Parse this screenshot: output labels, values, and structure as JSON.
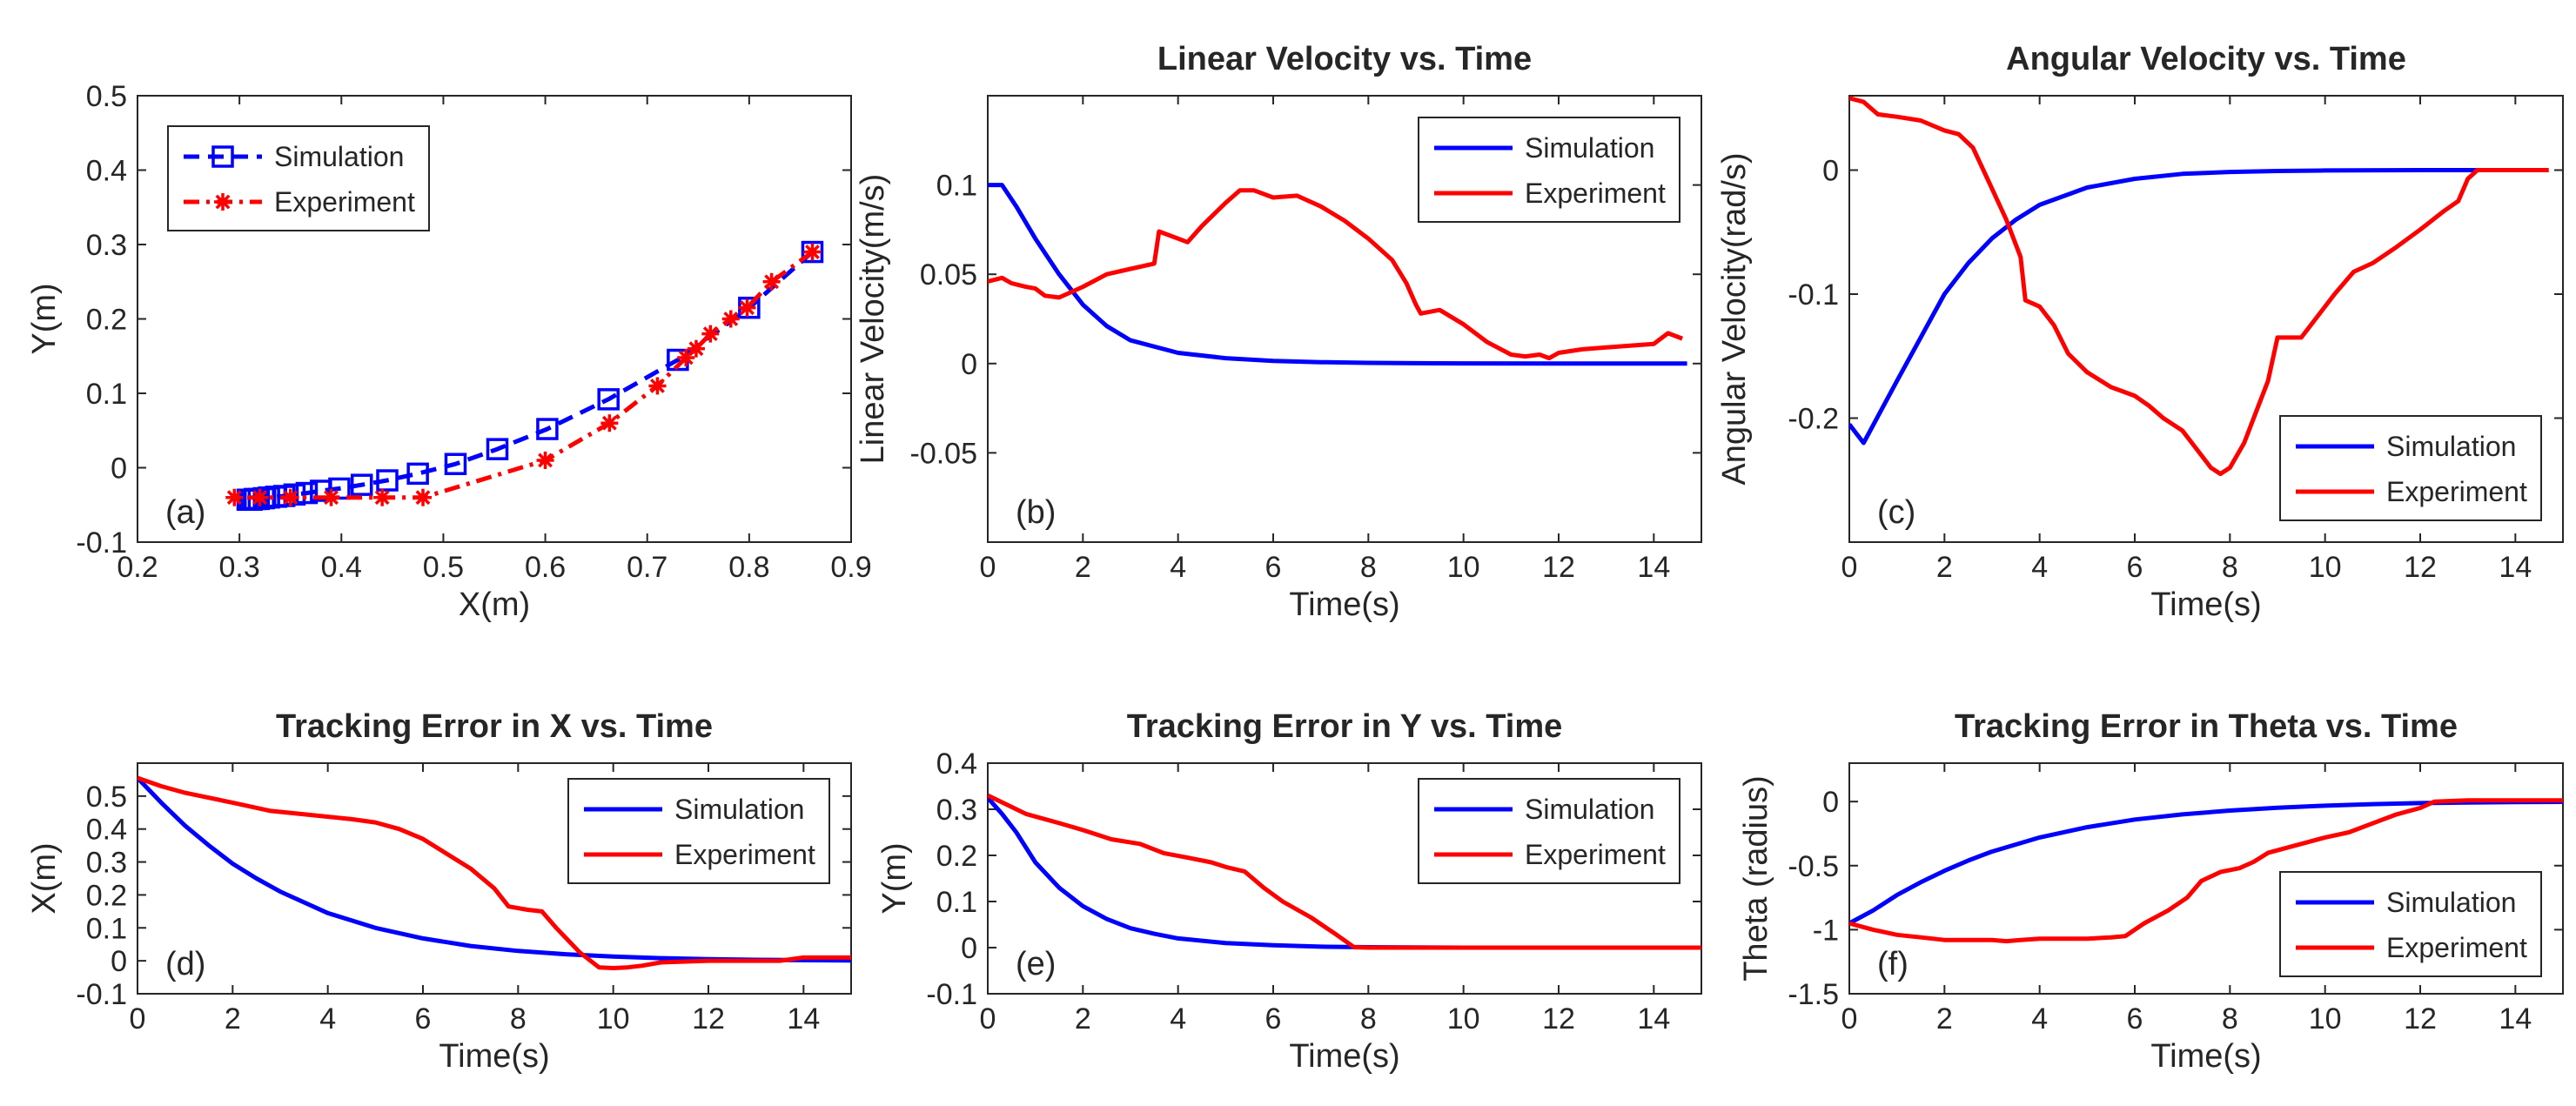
{
  "figure": {
    "description_labels": [
      "(a)",
      "(b)",
      "(c)",
      "(d)",
      "(e)",
      "(f)"
    ]
  },
  "colors": {
    "simulation": "#0000ff",
    "experiment": "#ff0000",
    "axis": "#262626"
  },
  "chart_data": [
    {
      "id": "a",
      "type": "line",
      "panel_label": "(a)",
      "title": "",
      "xlabel": "X(m)",
      "ylabel": "Y(m)",
      "xlim": [
        0.2,
        0.9
      ],
      "ylim": [
        -0.1,
        0.5
      ],
      "xticks": [
        0.2,
        0.3,
        0.4,
        0.5,
        0.6,
        0.7,
        0.8,
        0.9
      ],
      "xtick_labels": [
        "0.2",
        "0.3",
        "0.4",
        "0.5",
        "0.6",
        "0.7",
        "0.8",
        "0.9"
      ],
      "yticks": [
        -0.1,
        0,
        0.1,
        0.2,
        0.3,
        0.4,
        0.5
      ],
      "ytick_labels": [
        "-0.1",
        "0",
        "0.1",
        "0.2",
        "0.3",
        "0.4",
        "0.5"
      ],
      "legend_position": "top-left",
      "series": [
        {
          "name": "Simulation",
          "color": "#0000ff",
          "dash": "dashed",
          "marker": "square",
          "x": [
            0.862,
            0.8,
            0.73,
            0.662,
            0.602,
            0.553,
            0.512,
            0.475,
            0.445,
            0.42,
            0.398,
            0.38,
            0.366,
            0.354,
            0.344,
            0.336,
            0.329,
            0.324,
            0.319,
            0.315,
            0.312,
            0.31,
            0.308
          ],
          "y": [
            0.29,
            0.215,
            0.145,
            0.092,
            0.052,
            0.025,
            0.005,
            -0.008,
            -0.017,
            -0.023,
            -0.028,
            -0.031,
            -0.034,
            -0.036,
            -0.038,
            -0.039,
            -0.04,
            -0.041,
            -0.042,
            -0.042,
            -0.043,
            -0.043,
            -0.043
          ]
        },
        {
          "name": "Experiment",
          "color": "#ff0000",
          "dash": "dashdot",
          "marker": "star",
          "x": [
            0.862,
            0.822,
            0.798,
            0.782,
            0.762,
            0.748,
            0.738,
            0.71,
            0.663,
            0.6,
            0.48,
            0.44,
            0.39,
            0.35,
            0.32,
            0.295
          ],
          "y": [
            0.29,
            0.25,
            0.215,
            0.2,
            0.18,
            0.16,
            0.148,
            0.11,
            0.06,
            0.01,
            -0.04,
            -0.04,
            -0.04,
            -0.04,
            -0.04,
            -0.04
          ]
        }
      ]
    },
    {
      "id": "b",
      "type": "line",
      "panel_label": "(b)",
      "title": "Linear Velocity vs. Time",
      "xlabel": "Time(s)",
      "ylabel": "Linear Velocity(m/s)",
      "xlim": [
        0,
        15
      ],
      "ylim": [
        -0.1,
        0.15
      ],
      "xticks": [
        0,
        2,
        4,
        6,
        8,
        10,
        12,
        14
      ],
      "xtick_labels": [
        "0",
        "2",
        "4",
        "6",
        "8",
        "10",
        "12",
        "14"
      ],
      "yticks": [
        -0.05,
        0,
        0.05,
        0.1
      ],
      "ytick_labels": [
        "-0.05",
        "0",
        "0.05",
        "0.1"
      ],
      "legend_position": "top-right",
      "series": [
        {
          "name": "Simulation",
          "color": "#0000ff",
          "dash": "solid",
          "marker": "none",
          "x": [
            0,
            0.3,
            0.6,
            1.0,
            1.5,
            2,
            2.5,
            3,
            4,
            5,
            6,
            7,
            8,
            9,
            10,
            12,
            14,
            14.7
          ],
          "y": [
            0.1,
            0.1,
            0.088,
            0.07,
            0.05,
            0.033,
            0.021,
            0.013,
            0.006,
            0.003,
            0.0015,
            0.0008,
            0.0004,
            0.0002,
            0.0001,
            0,
            0,
            0
          ]
        },
        {
          "name": "Experiment",
          "color": "#ff0000",
          "dash": "solid",
          "marker": "none",
          "x": [
            0,
            0.3,
            0.5,
            0.8,
            1.0,
            1.2,
            1.5,
            2.0,
            2.5,
            3.0,
            3.5,
            3.6,
            4.0,
            4.2,
            4.5,
            5.0,
            5.3,
            5.6,
            6.0,
            6.5,
            7.0,
            7.5,
            8.0,
            8.5,
            8.8,
            9.0,
            9.1,
            9.5,
            10.0,
            10.5,
            11.0,
            11.3,
            11.6,
            11.8,
            12.0,
            12.5,
            13.0,
            13.5,
            14.0,
            14.3,
            14.6
          ],
          "y": [
            0.046,
            0.048,
            0.045,
            0.043,
            0.042,
            0.038,
            0.037,
            0.043,
            0.05,
            0.053,
            0.056,
            0.074,
            0.07,
            0.068,
            0.077,
            0.09,
            0.097,
            0.097,
            0.093,
            0.094,
            0.088,
            0.08,
            0.07,
            0.058,
            0.045,
            0.033,
            0.028,
            0.03,
            0.022,
            0.012,
            0.005,
            0.004,
            0.005,
            0.003,
            0.006,
            0.008,
            0.009,
            0.01,
            0.011,
            0.017,
            0.014
          ]
        }
      ]
    },
    {
      "id": "c",
      "type": "line",
      "panel_label": "(c)",
      "title": "Angular Velocity vs. Time",
      "xlabel": "Time(s)",
      "ylabel": "Angular Velocity(rad/s)",
      "xlim": [
        0,
        15
      ],
      "ylim": [
        -0.3,
        0.06
      ],
      "xticks": [
        0,
        2,
        4,
        6,
        8,
        10,
        12,
        14
      ],
      "xtick_labels": [
        "0",
        "2",
        "4",
        "6",
        "8",
        "10",
        "12",
        "14"
      ],
      "yticks": [
        -0.2,
        -0.1,
        0
      ],
      "ytick_labels": [
        "-0.2",
        "-0.1",
        "0"
      ],
      "legend_position": "bottom-right",
      "series": [
        {
          "name": "Simulation",
          "color": "#0000ff",
          "dash": "solid",
          "marker": "none",
          "x": [
            0,
            0.3,
            1.0,
            1.5,
            2,
            2.5,
            3,
            3.5,
            4,
            5,
            6,
            7,
            8,
            9,
            10,
            12,
            14,
            14.7
          ],
          "y": [
            -0.205,
            -0.22,
            -0.17,
            -0.135,
            -0.1,
            -0.075,
            -0.055,
            -0.04,
            -0.028,
            -0.014,
            -0.007,
            -0.003,
            -0.0015,
            -0.0007,
            -0.0003,
            0,
            0,
            0
          ]
        },
        {
          "name": "Experiment",
          "color": "#ff0000",
          "dash": "solid",
          "marker": "none",
          "x": [
            0,
            0.3,
            0.6,
            1.0,
            1.5,
            2.0,
            2.3,
            2.6,
            3.0,
            3.3,
            3.6,
            3.7,
            4.0,
            4.3,
            4.6,
            5.0,
            5.5,
            6.0,
            6.3,
            6.6,
            7.0,
            7.3,
            7.6,
            7.8,
            8.0,
            8.3,
            8.6,
            8.8,
            9.0,
            9.5,
            9.9,
            10.2,
            10.6,
            11.0,
            11.5,
            12.0,
            12.5,
            12.8,
            13.0,
            13.2,
            14.0,
            14.7
          ],
          "y": [
            0.058,
            0.055,
            0.045,
            0.043,
            0.04,
            0.032,
            0.029,
            0.018,
            -0.015,
            -0.04,
            -0.07,
            -0.105,
            -0.11,
            -0.125,
            -0.148,
            -0.163,
            -0.175,
            -0.182,
            -0.19,
            -0.2,
            -0.21,
            -0.225,
            -0.24,
            -0.245,
            -0.24,
            -0.22,
            -0.19,
            -0.17,
            -0.135,
            -0.135,
            -0.115,
            -0.1,
            -0.082,
            -0.075,
            -0.062,
            -0.048,
            -0.033,
            -0.025,
            -0.007,
            0,
            0,
            0
          ]
        }
      ]
    },
    {
      "id": "d",
      "type": "line",
      "panel_label": "(d)",
      "title": "Tracking Error in X vs. Time",
      "xlabel": "Time(s)",
      "ylabel": "X(m)",
      "xlim": [
        0,
        15
      ],
      "ylim": [
        -0.1,
        0.6
      ],
      "xticks": [
        0,
        2,
        4,
        6,
        8,
        10,
        12,
        14
      ],
      "xtick_labels": [
        "0",
        "2",
        "4",
        "6",
        "8",
        "10",
        "12",
        "14"
      ],
      "yticks": [
        -0.1,
        0,
        0.1,
        0.2,
        0.3,
        0.4,
        0.5
      ],
      "ytick_labels": [
        "-0.1",
        "0",
        "0.1",
        "0.2",
        "0.3",
        "0.4",
        "0.5"
      ],
      "legend_position": "top-right",
      "series": [
        {
          "name": "Simulation",
          "color": "#0000ff",
          "dash": "solid",
          "marker": "none",
          "x": [
            0,
            0.5,
            1,
            1.5,
            2,
            2.5,
            3,
            4,
            5,
            6,
            7,
            8,
            9,
            10,
            11,
            12,
            13,
            14,
            15
          ],
          "y": [
            0.555,
            0.48,
            0.41,
            0.35,
            0.295,
            0.25,
            0.21,
            0.145,
            0.1,
            0.068,
            0.045,
            0.03,
            0.02,
            0.013,
            0.008,
            0.005,
            0.003,
            0.002,
            0.001
          ]
        },
        {
          "name": "Experiment",
          "color": "#ff0000",
          "dash": "solid",
          "marker": "none",
          "x": [
            0,
            0.5,
            1.0,
            2.0,
            2.8,
            3.5,
            4.5,
            5.0,
            5.5,
            6.0,
            6.5,
            7.0,
            7.5,
            7.8,
            8.2,
            8.5,
            8.8,
            9.0,
            9.3,
            9.7,
            10.0,
            10.3,
            10.6,
            11.0,
            12.0,
            13.0,
            13.5,
            14.0,
            15.0
          ],
          "y": [
            0.555,
            0.53,
            0.51,
            0.48,
            0.455,
            0.445,
            0.43,
            0.42,
            0.4,
            0.37,
            0.325,
            0.28,
            0.22,
            0.165,
            0.155,
            0.15,
            0.1,
            0.07,
            0.025,
            -0.02,
            -0.022,
            -0.02,
            -0.015,
            -0.005,
            0,
            0,
            0,
            0.01,
            0.01
          ]
        }
      ]
    },
    {
      "id": "e",
      "type": "line",
      "panel_label": "(e)",
      "title": "Tracking Error in Y vs. Time",
      "xlabel": "Time(s)",
      "ylabel": "Y(m)",
      "xlim": [
        0,
        15
      ],
      "ylim": [
        -0.1,
        0.4
      ],
      "xticks": [
        0,
        2,
        4,
        6,
        8,
        10,
        12,
        14
      ],
      "xtick_labels": [
        "0",
        "2",
        "4",
        "6",
        "8",
        "10",
        "12",
        "14"
      ],
      "yticks": [
        -0.1,
        0,
        0.1,
        0.2,
        0.3,
        0.4
      ],
      "ytick_labels": [
        "-0.1",
        "0",
        "0.1",
        "0.2",
        "0.3",
        "0.4"
      ],
      "legend_position": "top-right",
      "series": [
        {
          "name": "Simulation",
          "color": "#0000ff",
          "dash": "solid",
          "marker": "none",
          "x": [
            0,
            0.3,
            0.6,
            1,
            1.5,
            2,
            2.5,
            3,
            3.5,
            4,
            5,
            6,
            7,
            8,
            10,
            12,
            14,
            15
          ],
          "y": [
            0.325,
            0.29,
            0.25,
            0.185,
            0.13,
            0.09,
            0.062,
            0.042,
            0.03,
            0.02,
            0.01,
            0.005,
            0.002,
            0.001,
            0,
            0,
            0,
            0
          ]
        },
        {
          "name": "Experiment",
          "color": "#ff0000",
          "dash": "solid",
          "marker": "none",
          "x": [
            0,
            0.3,
            0.8,
            1.5,
            2.0,
            2.6,
            3.2,
            3.7,
            4.2,
            4.7,
            5.0,
            5.4,
            5.8,
            6.2,
            6.8,
            7.3,
            7.7,
            8.0,
            10,
            12,
            14,
            15
          ],
          "y": [
            0.33,
            0.315,
            0.29,
            0.27,
            0.255,
            0.235,
            0.225,
            0.205,
            0.195,
            0.185,
            0.175,
            0.165,
            0.13,
            0.1,
            0.065,
            0.03,
            0.001,
            0,
            0,
            0,
            0,
            0
          ]
        }
      ]
    },
    {
      "id": "f",
      "type": "line",
      "panel_label": "(f)",
      "title": "Tracking Error in Theta vs. Time",
      "xlabel": "Time(s)",
      "ylabel": "Theta (radius)",
      "xlim": [
        0,
        15
      ],
      "ylim": [
        -1.5,
        0.3
      ],
      "xticks": [
        0,
        2,
        4,
        6,
        8,
        10,
        12,
        14
      ],
      "xtick_labels": [
        "0",
        "2",
        "4",
        "6",
        "8",
        "10",
        "12",
        "14"
      ],
      "yticks": [
        -1.5,
        -1,
        -0.5,
        0
      ],
      "ytick_labels": [
        "-1.5",
        "-1",
        "-0.5",
        "0"
      ],
      "legend_position": "bottom-right",
      "series": [
        {
          "name": "Simulation",
          "color": "#0000ff",
          "dash": "solid",
          "marker": "none",
          "x": [
            0,
            0.5,
            1,
            1.5,
            2,
            2.5,
            3,
            4,
            5,
            6,
            7,
            8,
            9,
            10,
            11,
            12,
            13,
            14,
            15
          ],
          "y": [
            -0.95,
            -0.85,
            -0.73,
            -0.63,
            -0.54,
            -0.46,
            -0.39,
            -0.28,
            -0.2,
            -0.14,
            -0.1,
            -0.07,
            -0.048,
            -0.032,
            -0.02,
            -0.012,
            -0.007,
            -0.004,
            -0.002
          ]
        },
        {
          "name": "Experiment",
          "color": "#ff0000",
          "dash": "solid",
          "marker": "none",
          "x": [
            0,
            0.5,
            1.0,
            1.5,
            2.0,
            2.5,
            3.0,
            3.3,
            3.6,
            4.0,
            4.5,
            5.0,
            5.5,
            5.8,
            6.2,
            6.7,
            7.1,
            7.4,
            7.8,
            8.2,
            8.5,
            8.8,
            9.2,
            9.6,
            10.0,
            10.5,
            11.0,
            11.5,
            12.0,
            12.3,
            13.0,
            14.0,
            15.0
          ],
          "y": [
            -0.95,
            -1.0,
            -1.04,
            -1.06,
            -1.08,
            -1.08,
            -1.08,
            -1.09,
            -1.08,
            -1.07,
            -1.07,
            -1.07,
            -1.06,
            -1.05,
            -0.95,
            -0.85,
            -0.75,
            -0.62,
            -0.55,
            -0.52,
            -0.47,
            -0.4,
            -0.36,
            -0.32,
            -0.28,
            -0.24,
            -0.17,
            -0.1,
            -0.05,
            0,
            0.01,
            0.01,
            0.01
          ]
        }
      ]
    }
  ]
}
